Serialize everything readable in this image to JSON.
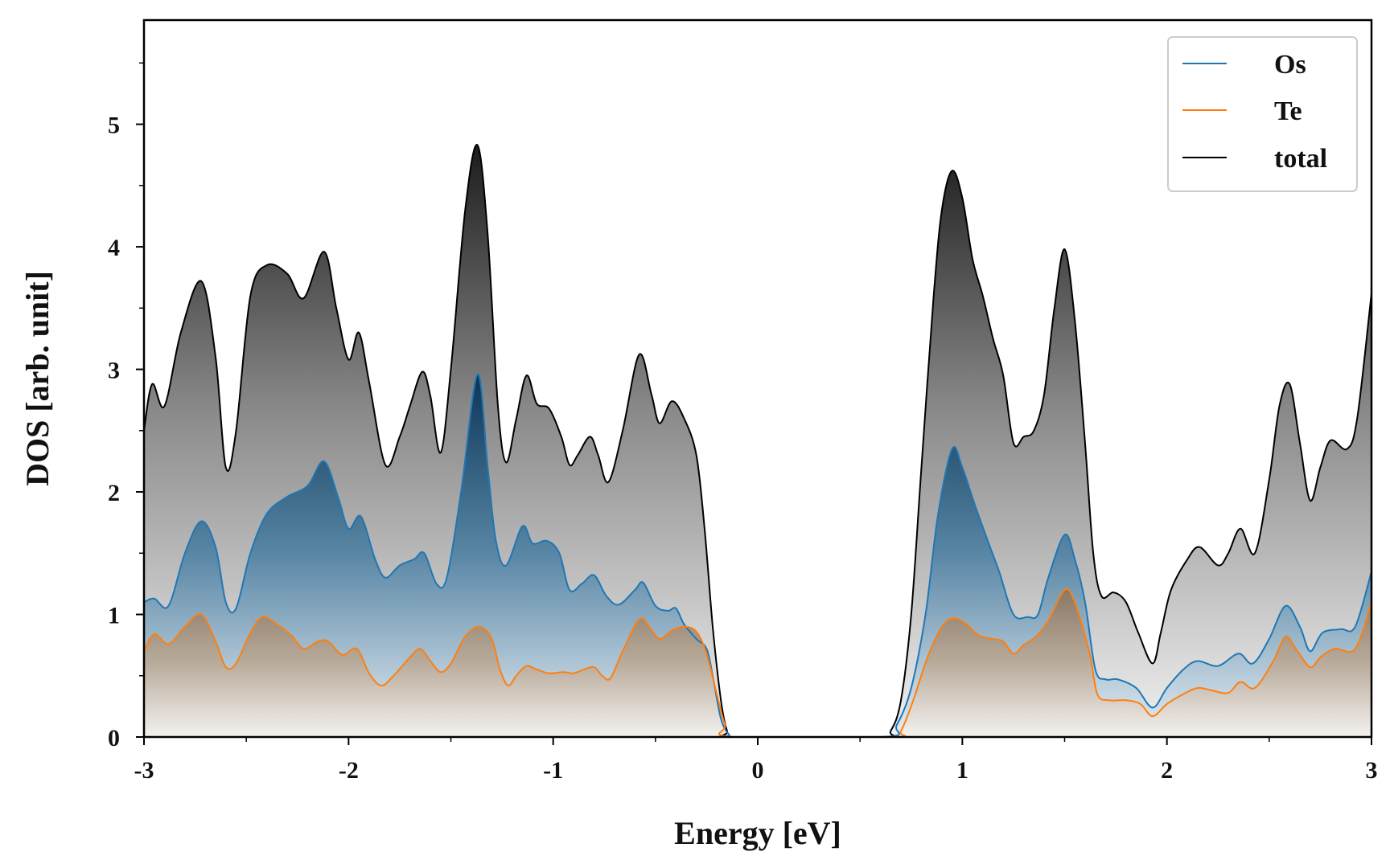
{
  "chart_data": {
    "type": "area",
    "title": "",
    "xlabel": "Energy [eV]",
    "ylabel": "DOS [arb. unit]",
    "xlim": [
      -3,
      3
    ],
    "ylim": [
      0,
      5.85
    ],
    "xticks": [
      -3,
      -2,
      -1,
      0,
      1,
      2,
      3
    ],
    "xtick_labels": [
      "-3",
      "-2",
      "-1",
      "0",
      "1",
      "2",
      "3"
    ],
    "yticks": [
      0,
      1,
      2,
      3,
      4,
      5
    ],
    "ytick_labels": [
      "0",
      "1",
      "2",
      "3",
      "4",
      "5"
    ],
    "grid": false,
    "legend_position": "top-right",
    "series": [
      {
        "name": "total",
        "color": "#000000",
        "fill": "gray-gradient",
        "points": [
          [
            -3,
            2.5
          ],
          [
            -2.96,
            2.88
          ],
          [
            -2.9,
            2.7
          ],
          [
            -2.82,
            3.3
          ],
          [
            -2.72,
            3.72
          ],
          [
            -2.65,
            3.1
          ],
          [
            -2.6,
            2.2
          ],
          [
            -2.55,
            2.5
          ],
          [
            -2.48,
            3.6
          ],
          [
            -2.4,
            3.85
          ],
          [
            -2.3,
            3.78
          ],
          [
            -2.22,
            3.58
          ],
          [
            -2.12,
            3.96
          ],
          [
            -2.06,
            3.5
          ],
          [
            -2.0,
            3.08
          ],
          [
            -1.95,
            3.3
          ],
          [
            -1.9,
            2.9
          ],
          [
            -1.82,
            2.22
          ],
          [
            -1.75,
            2.45
          ],
          [
            -1.7,
            2.7
          ],
          [
            -1.64,
            2.98
          ],
          [
            -1.6,
            2.78
          ],
          [
            -1.55,
            2.32
          ],
          [
            -1.5,
            3.0
          ],
          [
            -1.43,
            4.3
          ],
          [
            -1.37,
            4.83
          ],
          [
            -1.32,
            4.1
          ],
          [
            -1.27,
            2.7
          ],
          [
            -1.23,
            2.24
          ],
          [
            -1.18,
            2.6
          ],
          [
            -1.13,
            2.95
          ],
          [
            -1.08,
            2.72
          ],
          [
            -1.02,
            2.68
          ],
          [
            -0.96,
            2.45
          ],
          [
            -0.92,
            2.22
          ],
          [
            -0.88,
            2.3
          ],
          [
            -0.82,
            2.45
          ],
          [
            -0.78,
            2.3
          ],
          [
            -0.73,
            2.08
          ],
          [
            -0.66,
            2.5
          ],
          [
            -0.58,
            3.12
          ],
          [
            -0.52,
            2.8
          ],
          [
            -0.48,
            2.56
          ],
          [
            -0.42,
            2.74
          ],
          [
            -0.36,
            2.6
          ],
          [
            -0.3,
            2.3
          ],
          [
            -0.26,
            1.7
          ],
          [
            -0.22,
            0.9
          ],
          [
            -0.18,
            0.3
          ],
          [
            -0.15,
            0.05
          ],
          [
            -0.12,
            0.0
          ],
          [
            0.6,
            0.0
          ],
          [
            0.65,
            0.05
          ],
          [
            0.7,
            0.3
          ],
          [
            0.75,
            1.0
          ],
          [
            0.8,
            2.2
          ],
          [
            0.86,
            3.6
          ],
          [
            0.9,
            4.3
          ],
          [
            0.95,
            4.62
          ],
          [
            1.0,
            4.4
          ],
          [
            1.05,
            3.9
          ],
          [
            1.1,
            3.6
          ],
          [
            1.15,
            3.25
          ],
          [
            1.2,
            2.95
          ],
          [
            1.25,
            2.4
          ],
          [
            1.3,
            2.45
          ],
          [
            1.35,
            2.5
          ],
          [
            1.4,
            2.8
          ],
          [
            1.45,
            3.5
          ],
          [
            1.5,
            3.98
          ],
          [
            1.55,
            3.4
          ],
          [
            1.6,
            2.4
          ],
          [
            1.64,
            1.5
          ],
          [
            1.68,
            1.15
          ],
          [
            1.74,
            1.18
          ],
          [
            1.8,
            1.1
          ],
          [
            1.86,
            0.85
          ],
          [
            1.93,
            0.6
          ],
          [
            1.97,
            0.85
          ],
          [
            2.02,
            1.2
          ],
          [
            2.1,
            1.45
          ],
          [
            2.16,
            1.55
          ],
          [
            2.25,
            1.4
          ],
          [
            2.3,
            1.5
          ],
          [
            2.36,
            1.7
          ],
          [
            2.43,
            1.5
          ],
          [
            2.5,
            2.1
          ],
          [
            2.55,
            2.7
          ],
          [
            2.6,
            2.88
          ],
          [
            2.65,
            2.4
          ],
          [
            2.7,
            1.93
          ],
          [
            2.75,
            2.2
          ],
          [
            2.8,
            2.42
          ],
          [
            2.88,
            2.35
          ],
          [
            2.93,
            2.6
          ],
          [
            3.0,
            3.62
          ]
        ]
      },
      {
        "name": "Os",
        "color": "#1f77b4",
        "fill": "blue-gradient",
        "points": [
          [
            -3,
            1.1
          ],
          [
            -2.95,
            1.13
          ],
          [
            -2.88,
            1.07
          ],
          [
            -2.8,
            1.5
          ],
          [
            -2.72,
            1.76
          ],
          [
            -2.65,
            1.55
          ],
          [
            -2.6,
            1.1
          ],
          [
            -2.55,
            1.05
          ],
          [
            -2.48,
            1.5
          ],
          [
            -2.4,
            1.82
          ],
          [
            -2.3,
            1.96
          ],
          [
            -2.2,
            2.05
          ],
          [
            -2.12,
            2.25
          ],
          [
            -2.05,
            1.95
          ],
          [
            -2.0,
            1.7
          ],
          [
            -1.94,
            1.8
          ],
          [
            -1.87,
            1.45
          ],
          [
            -1.82,
            1.3
          ],
          [
            -1.75,
            1.4
          ],
          [
            -1.68,
            1.45
          ],
          [
            -1.63,
            1.5
          ],
          [
            -1.57,
            1.25
          ],
          [
            -1.52,
            1.3
          ],
          [
            -1.45,
            2.0
          ],
          [
            -1.37,
            2.96
          ],
          [
            -1.32,
            2.2
          ],
          [
            -1.28,
            1.6
          ],
          [
            -1.23,
            1.4
          ],
          [
            -1.15,
            1.72
          ],
          [
            -1.1,
            1.58
          ],
          [
            -1.03,
            1.6
          ],
          [
            -0.97,
            1.5
          ],
          [
            -0.92,
            1.2
          ],
          [
            -0.86,
            1.25
          ],
          [
            -0.8,
            1.32
          ],
          [
            -0.74,
            1.15
          ],
          [
            -0.68,
            1.08
          ],
          [
            -0.6,
            1.2
          ],
          [
            -0.56,
            1.26
          ],
          [
            -0.5,
            1.07
          ],
          [
            -0.44,
            1.03
          ],
          [
            -0.4,
            1.05
          ],
          [
            -0.36,
            0.92
          ],
          [
            -0.3,
            0.8
          ],
          [
            -0.25,
            0.72
          ],
          [
            -0.22,
            0.5
          ],
          [
            -0.18,
            0.15
          ],
          [
            -0.14,
            0.02
          ],
          [
            -0.1,
            0.0
          ],
          [
            0.62,
            0.0
          ],
          [
            0.68,
            0.1
          ],
          [
            0.75,
            0.4
          ],
          [
            0.82,
            1.0
          ],
          [
            0.88,
            1.8
          ],
          [
            0.95,
            2.35
          ],
          [
            1.0,
            2.2
          ],
          [
            1.06,
            1.9
          ],
          [
            1.12,
            1.62
          ],
          [
            1.18,
            1.35
          ],
          [
            1.25,
            1.0
          ],
          [
            1.32,
            0.98
          ],
          [
            1.37,
            1.0
          ],
          [
            1.42,
            1.3
          ],
          [
            1.5,
            1.65
          ],
          [
            1.55,
            1.45
          ],
          [
            1.6,
            1.1
          ],
          [
            1.65,
            0.55
          ],
          [
            1.7,
            0.47
          ],
          [
            1.76,
            0.47
          ],
          [
            1.85,
            0.4
          ],
          [
            1.93,
            0.24
          ],
          [
            2.0,
            0.4
          ],
          [
            2.08,
            0.55
          ],
          [
            2.15,
            0.62
          ],
          [
            2.25,
            0.58
          ],
          [
            2.35,
            0.68
          ],
          [
            2.42,
            0.6
          ],
          [
            2.5,
            0.8
          ],
          [
            2.58,
            1.07
          ],
          [
            2.65,
            0.9
          ],
          [
            2.7,
            0.7
          ],
          [
            2.76,
            0.85
          ],
          [
            2.85,
            0.88
          ],
          [
            2.92,
            0.9
          ],
          [
            3.0,
            1.35
          ]
        ]
      },
      {
        "name": "Te",
        "color": "#ff7f0e",
        "fill": "brown-gradient",
        "points": [
          [
            -3,
            0.7
          ],
          [
            -2.95,
            0.84
          ],
          [
            -2.88,
            0.76
          ],
          [
            -2.8,
            0.9
          ],
          [
            -2.72,
            1.0
          ],
          [
            -2.65,
            0.78
          ],
          [
            -2.6,
            0.57
          ],
          [
            -2.55,
            0.6
          ],
          [
            -2.48,
            0.85
          ],
          [
            -2.42,
            0.98
          ],
          [
            -2.35,
            0.92
          ],
          [
            -2.28,
            0.83
          ],
          [
            -2.22,
            0.72
          ],
          [
            -2.15,
            0.78
          ],
          [
            -2.1,
            0.78
          ],
          [
            -2.03,
            0.67
          ],
          [
            -1.96,
            0.72
          ],
          [
            -1.9,
            0.52
          ],
          [
            -1.84,
            0.42
          ],
          [
            -1.78,
            0.5
          ],
          [
            -1.7,
            0.65
          ],
          [
            -1.65,
            0.72
          ],
          [
            -1.6,
            0.62
          ],
          [
            -1.55,
            0.53
          ],
          [
            -1.5,
            0.6
          ],
          [
            -1.43,
            0.82
          ],
          [
            -1.36,
            0.9
          ],
          [
            -1.3,
            0.8
          ],
          [
            -1.26,
            0.55
          ],
          [
            -1.22,
            0.42
          ],
          [
            -1.18,
            0.5
          ],
          [
            -1.13,
            0.58
          ],
          [
            -1.08,
            0.55
          ],
          [
            -1.02,
            0.52
          ],
          [
            -0.95,
            0.53
          ],
          [
            -0.9,
            0.52
          ],
          [
            -0.85,
            0.55
          ],
          [
            -0.8,
            0.57
          ],
          [
            -0.76,
            0.5
          ],
          [
            -0.72,
            0.48
          ],
          [
            -0.66,
            0.7
          ],
          [
            -0.58,
            0.96
          ],
          [
            -0.53,
            0.9
          ],
          [
            -0.48,
            0.8
          ],
          [
            -0.42,
            0.87
          ],
          [
            -0.36,
            0.9
          ],
          [
            -0.3,
            0.86
          ],
          [
            -0.25,
            0.68
          ],
          [
            -0.2,
            0.35
          ],
          [
            -0.16,
            0.1
          ],
          [
            -0.12,
            0.0
          ],
          [
            0.65,
            0.0
          ],
          [
            0.7,
            0.05
          ],
          [
            0.76,
            0.3
          ],
          [
            0.83,
            0.65
          ],
          [
            0.9,
            0.9
          ],
          [
            0.96,
            0.97
          ],
          [
            1.02,
            0.92
          ],
          [
            1.08,
            0.83
          ],
          [
            1.15,
            0.8
          ],
          [
            1.2,
            0.78
          ],
          [
            1.25,
            0.68
          ],
          [
            1.3,
            0.75
          ],
          [
            1.36,
            0.82
          ],
          [
            1.42,
            0.95
          ],
          [
            1.5,
            1.2
          ],
          [
            1.55,
            1.1
          ],
          [
            1.62,
            0.7
          ],
          [
            1.66,
            0.35
          ],
          [
            1.72,
            0.3
          ],
          [
            1.8,
            0.3
          ],
          [
            1.87,
            0.27
          ],
          [
            1.93,
            0.17
          ],
          [
            2.0,
            0.27
          ],
          [
            2.08,
            0.35
          ],
          [
            2.15,
            0.4
          ],
          [
            2.22,
            0.38
          ],
          [
            2.3,
            0.36
          ],
          [
            2.36,
            0.45
          ],
          [
            2.43,
            0.4
          ],
          [
            2.52,
            0.62
          ],
          [
            2.58,
            0.82
          ],
          [
            2.63,
            0.72
          ],
          [
            2.7,
            0.57
          ],
          [
            2.75,
            0.65
          ],
          [
            2.82,
            0.72
          ],
          [
            2.92,
            0.72
          ],
          [
            3.0,
            1.1
          ]
        ]
      }
    ]
  },
  "legend": {
    "items": [
      {
        "label": "Os",
        "color": "#1f77b4"
      },
      {
        "label": "Te",
        "color": "#ff7f0e"
      },
      {
        "label": "total",
        "color": "#000000"
      }
    ]
  },
  "colors": {
    "os_line": "#1f77b4",
    "te_line": "#ff7f0e",
    "total_line": "#000000",
    "axis": "#000000"
  }
}
